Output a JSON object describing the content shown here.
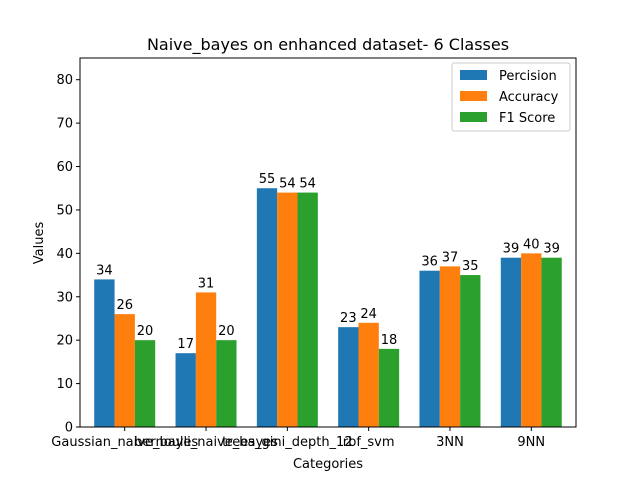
{
  "chart_data": {
    "type": "bar",
    "title": "Naive_bayes on enhanced dataset- 6 Classes",
    "xlabel": "Categories",
    "ylabel": "Values",
    "categories": [
      "Gaussian_naive_bayes",
      "bernoulli_naive_bayes",
      "trees_gini_depth_12",
      "rbf_svm",
      "3NN",
      "9NN"
    ],
    "series": [
      {
        "name": "Percision",
        "color": "#1f77b4",
        "values": [
          34,
          17,
          55,
          23,
          36,
          39
        ]
      },
      {
        "name": "Accuracy",
        "color": "#ff7f0e",
        "values": [
          26,
          31,
          54,
          24,
          37,
          40
        ]
      },
      {
        "name": "F1 Score",
        "color": "#2ca02c",
        "values": [
          20,
          20,
          54,
          18,
          35,
          39
        ]
      }
    ],
    "ylim": [
      0,
      85
    ],
    "yticks": [
      0,
      10,
      20,
      30,
      40,
      50,
      60,
      70,
      80
    ],
    "legend_position": "top-right",
    "grid": false
  }
}
